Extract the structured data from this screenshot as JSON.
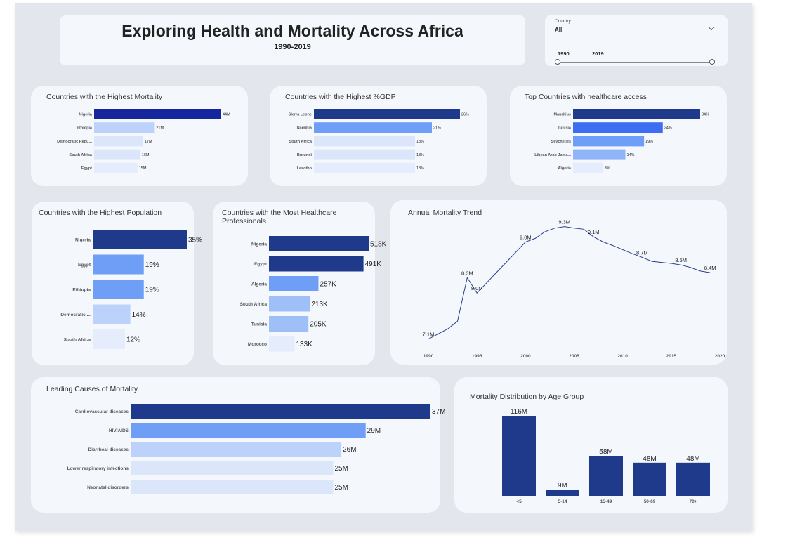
{
  "header": {
    "title": "Exploring Health and Mortality Across Africa",
    "subtitle": "1990-2019"
  },
  "slicer": {
    "label": "Country",
    "value": "All",
    "year_start": "1990",
    "year_end": "2019"
  },
  "colors": {
    "bar_dark": "#1f3a8a",
    "bar_navy": "#16279e",
    "bar_mid": "#6f9ef6",
    "bar_light": "#bcd2fb",
    "bar_pale": "#dbe6fb",
    "bar_faint": "#e5ecfc",
    "line": "#2a3f8c"
  },
  "charts": {
    "mortality": {
      "title": "Countries with the Highest Mortality",
      "rows": [
        {
          "label": "Nigeria",
          "value": 44,
          "text": "44M"
        },
        {
          "label": "Ethiopia",
          "value": 21,
          "text": "21M"
        },
        {
          "label": "Democratic Repu...",
          "value": 17,
          "text": "17M"
        },
        {
          "label": "South Africa",
          "value": 16,
          "text": "16M"
        },
        {
          "label": "Egypt",
          "value": 15,
          "text": "15M"
        }
      ]
    },
    "gdp": {
      "title": "Countries with the Highest %GDP",
      "rows": [
        {
          "label": "Sierra Leone",
          "value": 26,
          "text": "26%"
        },
        {
          "label": "Namibia",
          "value": 21,
          "text": "21%"
        },
        {
          "label": "South Africa",
          "value": 18,
          "text": "18%"
        },
        {
          "label": "Burundi",
          "value": 18,
          "text": "18%"
        },
        {
          "label": "Lesotho",
          "value": 18,
          "text": "18%"
        }
      ]
    },
    "access": {
      "title": "Top Countries with healthcare access",
      "rows": [
        {
          "label": "Mauritius",
          "value": 34,
          "text": "34%"
        },
        {
          "label": "Tunisia",
          "value": 24,
          "text": "24%"
        },
        {
          "label": "Seychelles",
          "value": 19,
          "text": "19%"
        },
        {
          "label": "Libyan Arab Jama...",
          "value": 14,
          "text": "14%"
        },
        {
          "label": "Algeria",
          "value": 8,
          "text": "8%"
        }
      ]
    },
    "population": {
      "title": "Countries with the Highest Population",
      "rows": [
        {
          "label": "Nigeria",
          "value": 35,
          "text": "35%"
        },
        {
          "label": "Egypt",
          "value": 19,
          "text": "19%"
        },
        {
          "label": "Ethiopia",
          "value": 19,
          "text": "19%"
        },
        {
          "label": "Democratic ...",
          "value": 14,
          "text": "14%"
        },
        {
          "label": "South Africa",
          "value": 12,
          "text": "12%"
        }
      ]
    },
    "professionals": {
      "title_line1": "Countries with the Most Healthcare",
      "title_line2": "Professionals",
      "rows": [
        {
          "label": "Nigeria",
          "value": 518,
          "text": "518K"
        },
        {
          "label": "Egypt",
          "value": 491,
          "text": "491K"
        },
        {
          "label": "Algeria",
          "value": 257,
          "text": "257K"
        },
        {
          "label": "South Africa",
          "value": 213,
          "text": "213K"
        },
        {
          "label": "Tunisia",
          "value": 205,
          "text": "205K"
        },
        {
          "label": "Morocco",
          "value": 133,
          "text": "133K"
        }
      ]
    },
    "causes": {
      "title": "Leading Causes of Mortality",
      "rows": [
        {
          "label": "Cardiovascular diseases",
          "value": 37,
          "text": "37M"
        },
        {
          "label": "HIV/AIDS",
          "value": 29,
          "text": "29M"
        },
        {
          "label": "Diarrheal diseases",
          "value": 26,
          "text": "26M"
        },
        {
          "label": "Lower respiratory infections",
          "value": 25,
          "text": "25M"
        },
        {
          "label": "Neonatal disorders",
          "value": 25,
          "text": "25M"
        }
      ]
    },
    "trend": {
      "title": "Annual Mortality Trend",
      "x_ticks": [
        "1990",
        "1995",
        "2000",
        "2005",
        "2010",
        "2015",
        "2020"
      ],
      "xlim": [
        1990,
        2020
      ],
      "ylim": [
        7.0,
        9.35
      ]
    },
    "age": {
      "title": "Mortality Distribution by Age Group",
      "categories": [
        "<5",
        "5-14",
        "15-49",
        "50-69",
        "70+"
      ],
      "values": [
        116,
        9,
        58,
        48,
        48
      ],
      "labels": [
        "116M",
        "9M",
        "58M",
        "48M",
        "48M"
      ]
    }
  },
  "chart_data": [
    {
      "type": "bar",
      "title": "Countries with the Highest Mortality",
      "categories": [
        "Nigeria",
        "Ethiopia",
        "Democratic Repu...",
        "South Africa",
        "Egypt"
      ],
      "values": [
        44,
        21,
        17,
        16,
        15
      ],
      "unit": "M"
    },
    {
      "type": "bar",
      "title": "Countries with the Highest %GDP",
      "categories": [
        "Sierra Leone",
        "Namibia",
        "South Africa",
        "Burundi",
        "Lesotho"
      ],
      "values": [
        26,
        21,
        18,
        18,
        18
      ],
      "unit": "%"
    },
    {
      "type": "bar",
      "title": "Top Countries with healthcare access",
      "categories": [
        "Mauritius",
        "Tunisia",
        "Seychelles",
        "Libyan Arab Jama...",
        "Algeria"
      ],
      "values": [
        34,
        24,
        19,
        14,
        8
      ],
      "unit": "%"
    },
    {
      "type": "bar",
      "title": "Countries with the Highest Population",
      "categories": [
        "Nigeria",
        "Egypt",
        "Ethiopia",
        "Democratic ...",
        "South Africa"
      ],
      "values": [
        35,
        19,
        19,
        14,
        12
      ],
      "unit": "%"
    },
    {
      "type": "bar",
      "title": "Countries with the Most Healthcare Professionals",
      "categories": [
        "Nigeria",
        "Egypt",
        "Algeria",
        "South Africa",
        "Tunisia",
        "Morocco"
      ],
      "values": [
        518,
        491,
        257,
        213,
        205,
        133
      ],
      "unit": "K"
    },
    {
      "type": "line",
      "title": "Annual Mortality Trend",
      "x": [
        1990,
        1991,
        1992,
        1993,
        1994,
        1995,
        1996,
        1997,
        1998,
        1999,
        2000,
        2001,
        2002,
        2003,
        2004,
        2005,
        2006,
        2007,
        2008,
        2009,
        2010,
        2011,
        2012,
        2013,
        2014,
        2015,
        2016,
        2017,
        2018,
        2019
      ],
      "values": [
        7.1,
        7.2,
        7.3,
        7.45,
        8.3,
        8.0,
        8.2,
        8.4,
        8.6,
        8.8,
        9.0,
        9.07,
        9.2,
        9.27,
        9.3,
        9.27,
        9.25,
        9.1,
        9.0,
        8.93,
        8.85,
        8.77,
        8.7,
        8.62,
        8.6,
        8.58,
        8.55,
        8.5,
        8.43,
        8.4
      ],
      "labels": {
        "1990": "7.1M",
        "1994": "8.3M",
        "1995": "8.0M",
        "2000": "9.0M",
        "2004": "9.3M",
        "2007": "9.1M",
        "2012": "8.7M",
        "2016": "8.5M",
        "2019": "8.4M"
      },
      "xlim": [
        1990,
        2020
      ],
      "grid": false
    },
    {
      "type": "bar",
      "title": "Leading Causes of Mortality",
      "categories": [
        "Cardiovascular diseases",
        "HIV/AIDS",
        "Diarrheal diseases",
        "Lower respiratory infections",
        "Neonatal disorders"
      ],
      "values": [
        37,
        29,
        26,
        25,
        25
      ],
      "unit": "M"
    },
    {
      "type": "bar",
      "title": "Mortality Distribution by Age Group",
      "categories": [
        "<5",
        "5-14",
        "15-49",
        "50-69",
        "70+"
      ],
      "values": [
        116,
        9,
        58,
        48,
        48
      ],
      "unit": "M"
    }
  ]
}
